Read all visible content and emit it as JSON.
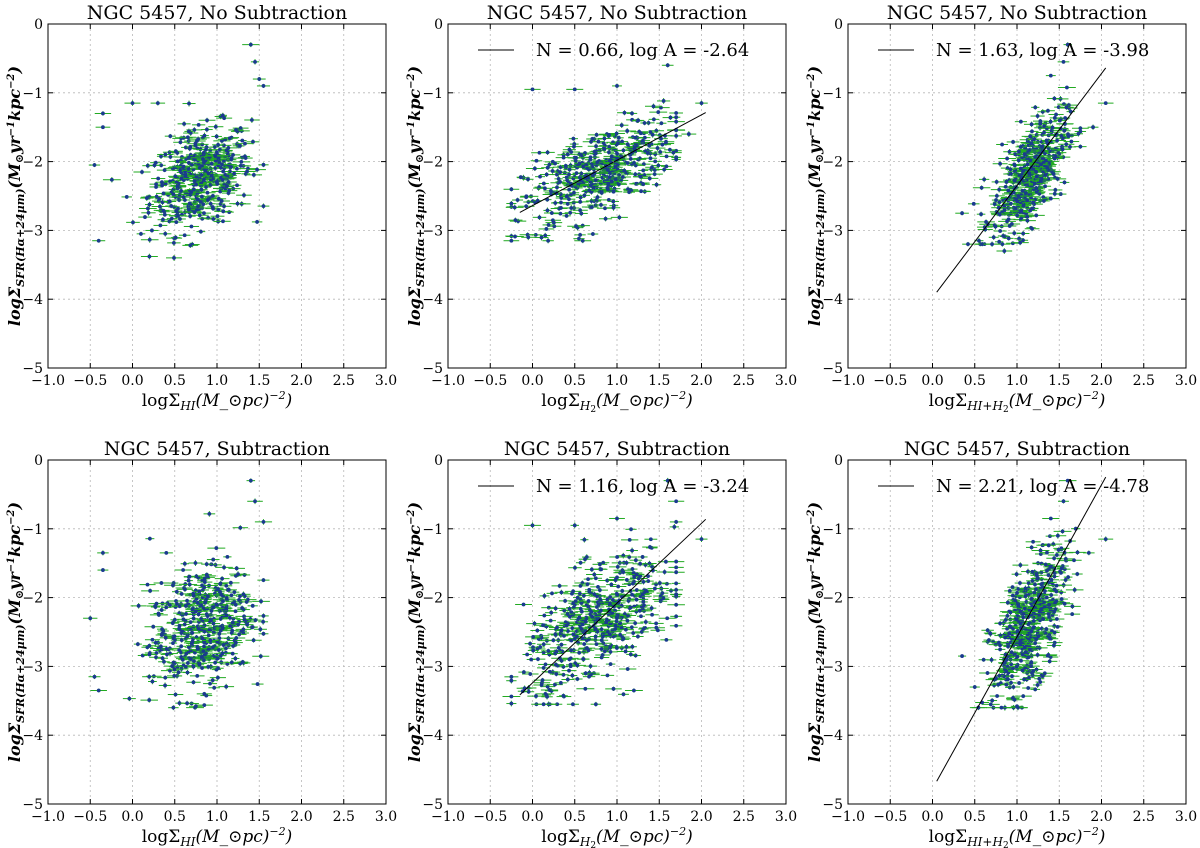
{
  "figure": {
    "columns": 3,
    "rows": 2
  },
  "colors": {
    "errorbar": "#22aa22",
    "marker": "#1a3a8f",
    "fitline": "#000000",
    "grid": "#b8b8b8"
  },
  "chart_data": [
    {
      "type": "scatter",
      "title": "NGC 5457, No Subtraction",
      "xlabel": "logΣ_HI(M_⊙pc^-2)",
      "ylabel": "logΣ_SFR(Hα+24μm)(M_⊙yr^-1kpc^-2)",
      "xlim": [
        -1.0,
        3.0
      ],
      "ylim": [
        -5,
        0
      ],
      "xticks": [
        "−1.0",
        "−0.5",
        "0.0",
        "0.5",
        "1.0",
        "1.5",
        "2.0",
        "2.5",
        "3.0"
      ],
      "yticks": [
        "−5",
        "−4",
        "−3",
        "−2",
        "−1",
        "0"
      ],
      "grid": true,
      "legend": null,
      "cloud": {
        "x_center": 0.8,
        "x_spread": 0.3,
        "x_min": -0.5,
        "x_max": 1.55,
        "y_center": -2.25,
        "y_spread": 0.35,
        "y_min": -3.4,
        "y_max": -0.3,
        "slope": 0.4,
        "count": 420
      },
      "points": [
        {
          "x": 1.4,
          "y": -0.3
        },
        {
          "x": 1.45,
          "y": -0.55
        },
        {
          "x": 1.5,
          "y": -0.8
        },
        {
          "x": 1.55,
          "y": -0.9
        },
        {
          "x": -0.35,
          "y": -1.3
        },
        {
          "x": -0.35,
          "y": -1.5
        },
        {
          "x": 0.0,
          "y": -1.15
        },
        {
          "x": 0.3,
          "y": -1.15
        },
        {
          "x": -0.4,
          "y": -3.15
        },
        {
          "x": 0.2,
          "y": -3.38
        },
        {
          "x": 0.1,
          "y": -3.05
        },
        {
          "x": -0.45,
          "y": -2.05
        }
      ]
    },
    {
      "type": "scatter",
      "title": "NGC 5457, No Subtraction",
      "xlabel": "logΣ_H2(M_⊙pc^-2)",
      "ylabel": "logΣ_SFR(Hα+24μm)(M_⊙yr^-1kpc^-2)",
      "xlim": [
        -1.0,
        3.0
      ],
      "ylim": [
        -5,
        0
      ],
      "xticks": [
        "−1.0",
        "−0.5",
        "0.0",
        "0.5",
        "1.0",
        "1.5",
        "2.0",
        "2.5",
        "3.0"
      ],
      "yticks": [
        "−5",
        "−4",
        "−3",
        "−2",
        "−1",
        "0"
      ],
      "grid": true,
      "legend": {
        "position": "top-right",
        "label": "N = 0.66, log A = -2.64"
      },
      "fit": {
        "N": 0.66,
        "logA": -2.64,
        "x_range": [
          -0.15,
          2.05
        ]
      },
      "cloud": {
        "x_center": 0.8,
        "x_spread": 0.45,
        "x_min": -0.25,
        "x_max": 1.7,
        "y_center": -2.15,
        "y_spread": 0.3,
        "y_min": -3.15,
        "y_max": -0.9,
        "slope": 0.55,
        "count": 440
      },
      "points": [
        {
          "x": 0.0,
          "y": -0.95
        },
        {
          "x": 0.5,
          "y": -0.95
        },
        {
          "x": 1.0,
          "y": -0.9
        },
        {
          "x": 1.6,
          "y": -0.6
        },
        {
          "x": 2.0,
          "y": -1.15
        },
        {
          "x": 1.85,
          "y": -1.6
        },
        {
          "x": -0.05,
          "y": -3.1
        },
        {
          "x": 0.55,
          "y": -3.12
        }
      ]
    },
    {
      "type": "scatter",
      "title": "NGC 5457, No Subtraction",
      "xlabel": "logΣ_HI+H2(M_⊙pc^-2)",
      "ylabel": "logΣ_SFR(Hα+24μm)(M_⊙yr^-1kpc^-2)",
      "xlim": [
        -1.0,
        3.0
      ],
      "ylim": [
        -5,
        0
      ],
      "xticks": [
        "−1.0",
        "−0.5",
        "0.0",
        "0.5",
        "1.0",
        "1.5",
        "2.0",
        "2.5",
        "3.0"
      ],
      "yticks": [
        "−5",
        "−4",
        "−3",
        "−2",
        "−1",
        "0"
      ],
      "grid": true,
      "legend": {
        "position": "top-right",
        "label": "N = 1.63, log A = -3.98"
      },
      "fit": {
        "N": 1.63,
        "logA": -3.98,
        "x_range": [
          0.05,
          2.05
        ]
      },
      "cloud": {
        "x_center": 1.15,
        "x_spread": 0.22,
        "x_min": 0.35,
        "x_max": 1.75,
        "y_center": -2.2,
        "y_spread": 0.35,
        "y_min": -3.2,
        "y_max": -0.8,
        "slope": 1.3,
        "count": 440
      },
      "points": [
        {
          "x": 1.6,
          "y": -0.3
        },
        {
          "x": 1.55,
          "y": -0.55
        },
        {
          "x": 1.4,
          "y": -0.75
        },
        {
          "x": 2.05,
          "y": -1.15
        },
        {
          "x": 1.9,
          "y": -1.5
        },
        {
          "x": 0.35,
          "y": -2.75
        },
        {
          "x": 0.55,
          "y": -3.15
        },
        {
          "x": 0.85,
          "y": -3.3
        }
      ]
    },
    {
      "type": "scatter",
      "title": "NGC 5457, Subtraction",
      "xlabel": "logΣ_HI(M_⊙pc^-2)",
      "ylabel": "logΣ_SFR(Hα+24μm)(M_⊙yr^-1kpc^-2)",
      "xlim": [
        -1.0,
        3.0
      ],
      "ylim": [
        -5,
        0
      ],
      "xticks": [
        "−1.0",
        "−0.5",
        "0.0",
        "0.5",
        "1.0",
        "1.5",
        "2.0",
        "2.5",
        "3.0"
      ],
      "yticks": [
        "−5",
        "−4",
        "−3",
        "−2",
        "−1",
        "0"
      ],
      "grid": true,
      "legend": null,
      "cloud": {
        "x_center": 0.8,
        "x_spread": 0.3,
        "x_min": -0.3,
        "x_max": 1.55,
        "y_center": -2.45,
        "y_spread": 0.45,
        "y_min": -3.6,
        "y_max": -0.3,
        "slope": 0.5,
        "count": 440
      },
      "points": [
        {
          "x": 1.4,
          "y": -0.3
        },
        {
          "x": 1.45,
          "y": -0.6
        },
        {
          "x": 1.55,
          "y": -0.9
        },
        {
          "x": -0.35,
          "y": -1.35
        },
        {
          "x": -0.35,
          "y": -1.6
        },
        {
          "x": 0.4,
          "y": -1.35
        },
        {
          "x": -0.45,
          "y": -3.15
        },
        {
          "x": -0.4,
          "y": -3.35
        },
        {
          "x": 0.75,
          "y": -3.58
        },
        {
          "x": -0.5,
          "y": -2.3
        }
      ]
    },
    {
      "type": "scatter",
      "title": "NGC 5457, Subtraction",
      "xlabel": "logΣ_H2(M_⊙pc^-2)",
      "ylabel": "logΣ_SFR(Hα+24μm)(M_⊙yr^-1kpc^-2)",
      "xlim": [
        -1.0,
        3.0
      ],
      "ylim": [
        -5,
        0
      ],
      "xticks": [
        "−1.0",
        "−0.5",
        "0.0",
        "0.5",
        "1.0",
        "1.5",
        "2.0",
        "2.5",
        "3.0"
      ],
      "yticks": [
        "−5",
        "−4",
        "−3",
        "−2",
        "−1",
        "0"
      ],
      "grid": true,
      "legend": {
        "position": "top-right",
        "label": "N = 1.16, log A = -3.24"
      },
      "fit": {
        "N": 1.16,
        "logA": -3.24,
        "x_range": [
          -0.15,
          2.05
        ]
      },
      "cloud": {
        "x_center": 0.8,
        "x_spread": 0.45,
        "x_min": -0.25,
        "x_max": 1.7,
        "y_center": -2.35,
        "y_spread": 0.4,
        "y_min": -3.55,
        "y_max": -0.9,
        "slope": 0.7,
        "count": 460
      },
      "points": [
        {
          "x": 0.0,
          "y": -0.95
        },
        {
          "x": 0.5,
          "y": -0.95
        },
        {
          "x": 1.0,
          "y": -0.85
        },
        {
          "x": 1.6,
          "y": -0.3
        },
        {
          "x": 1.7,
          "y": -0.6
        },
        {
          "x": 2.0,
          "y": -1.15
        },
        {
          "x": 0.75,
          "y": -3.55
        },
        {
          "x": 1.2,
          "y": -3.35
        }
      ]
    },
    {
      "type": "scatter",
      "title": "NGC 5457, Subtraction",
      "xlabel": "logΣ_HI+H2(M_⊙pc^-2)",
      "ylabel": "logΣ_SFR(Hα+24μm)(M_⊙yr^-1kpc^-2)",
      "xlim": [
        -1.0,
        3.0
      ],
      "ylim": [
        -5,
        0
      ],
      "xticks": [
        "−1.0",
        "−0.5",
        "0.0",
        "0.5",
        "1.0",
        "1.5",
        "2.0",
        "2.5",
        "3.0"
      ],
      "yticks": [
        "−5",
        "−4",
        "−3",
        "−2",
        "−1",
        "0"
      ],
      "grid": true,
      "legend": {
        "position": "top-right",
        "label": "N = 2.21, log A = -4.78"
      },
      "fit": {
        "N": 2.21,
        "logA": -4.78,
        "x_range": [
          0.05,
          2.05
        ]
      },
      "cloud": {
        "x_center": 1.15,
        "x_spread": 0.22,
        "x_min": 0.35,
        "x_max": 1.75,
        "y_center": -2.4,
        "y_spread": 0.42,
        "y_min": -3.6,
        "y_max": -0.8,
        "slope": 1.5,
        "count": 460
      },
      "points": [
        {
          "x": 1.6,
          "y": -0.3
        },
        {
          "x": 1.55,
          "y": -0.6
        },
        {
          "x": 1.4,
          "y": -0.85
        },
        {
          "x": 2.05,
          "y": -1.15
        },
        {
          "x": 1.85,
          "y": -1.35
        },
        {
          "x": 0.35,
          "y": -2.85
        },
        {
          "x": 0.5,
          "y": -3.3
        },
        {
          "x": 1.0,
          "y": -3.58
        }
      ]
    }
  ]
}
